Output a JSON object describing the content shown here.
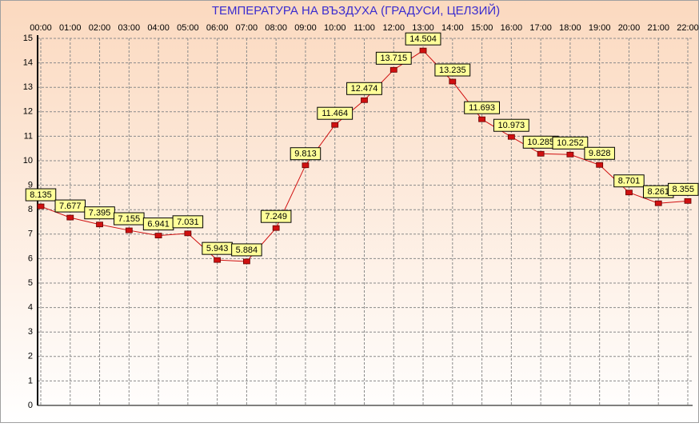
{
  "chart_data": {
    "type": "line",
    "title": "ТЕМПЕРАТУРА НА ВЪЗДУХА  (ГРАДУСИ, ЦЕЛЗИЙ)",
    "categories": [
      "00:00",
      "01:00",
      "02:00",
      "03:00",
      "04:00",
      "05:00",
      "06:00",
      "07:00",
      "08:00",
      "09:00",
      "10:00",
      "11:00",
      "12:00",
      "13:00",
      "14:00",
      "15:00",
      "16:00",
      "17:00",
      "18:00",
      "19:00",
      "20:00",
      "21:00",
      "22:00"
    ],
    "series": [
      {
        "color": "#d01010",
        "values": [
          8.135,
          7.677,
          7.395,
          7.155,
          6.941,
          7.031,
          5.943,
          5.884,
          7.249,
          9.813,
          11.464,
          12.474,
          13.715,
          14.504,
          13.235,
          11.693,
          10.973,
          10.285,
          10.252,
          9.828,
          8.701,
          8.261,
          8.355
        ]
      }
    ],
    "ylim": [
      0,
      15
    ],
    "yticks": [
      0,
      1,
      2,
      3,
      4,
      5,
      6,
      7,
      8,
      9,
      10,
      11,
      12,
      13,
      14,
      15
    ],
    "grid": true
  }
}
